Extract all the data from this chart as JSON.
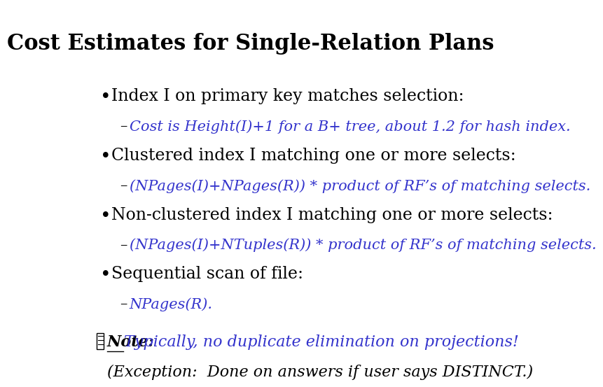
{
  "title": "Cost Estimates for Single-Relation Plans",
  "title_fontsize": 22,
  "title_color": "#000000",
  "title_weight": "bold",
  "background_color": "#ffffff",
  "bullet_color": "#000000",
  "blue_color": "#3333cc",
  "bullet_fontsize": 17,
  "sub_fontsize": 15,
  "note_fontsize": 16,
  "bullets": [
    "Index I on primary key matches selection:",
    "Clustered index I matching one or more selects:",
    "Non-clustered index I matching one or more selects:",
    "Sequential scan of file:"
  ],
  "sub_bullets": [
    "Cost is Height(I)+1 for a B+ tree, about 1.2 for hash index.",
    "(NPages(I)+NPages(R)) * product of RF’s of matching selects.",
    "(NPages(I)+NTuples(R)) * product of RF’s of matching selects.",
    "NPages(R)."
  ],
  "note_blue": "Typically, no duplicate elimination on projections!",
  "note_black2": "(Exception:  Done on answers if user says DISTINCT.)"
}
